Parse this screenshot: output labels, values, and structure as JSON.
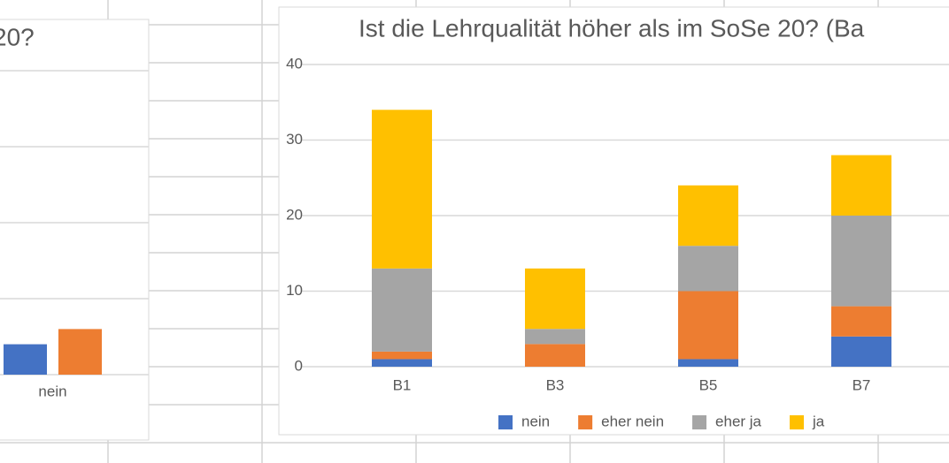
{
  "chart_data": [
    {
      "type": "bar",
      "title": "20?",
      "categories": [
        "nein"
      ],
      "series": [
        {
          "color": "#4472c4",
          "values": [
            4
          ]
        },
        {
          "color": "#ed7d31",
          "values": [
            6
          ]
        }
      ],
      "ylim": [
        0,
        40
      ],
      "yticks": [
        0,
        10,
        20,
        30,
        40
      ],
      "grid": true
    },
    {
      "type": "stacked_bar",
      "title": "Ist die Lehrqualität höher als im SoSe 20? (Ba",
      "categories": [
        "B1",
        "B3",
        "B5",
        "B7"
      ],
      "series": [
        {
          "name": "nein",
          "color": "#4472c4",
          "values": [
            1,
            0,
            1,
            4
          ]
        },
        {
          "name": "eher nein",
          "color": "#ed7d31",
          "values": [
            1,
            3,
            9,
            4
          ]
        },
        {
          "name": "eher ja",
          "color": "#a5a5a5",
          "values": [
            11,
            2,
            6,
            12
          ]
        },
        {
          "name": "ja",
          "color": "#ffc000",
          "values": [
            21,
            8,
            8,
            8
          ]
        }
      ],
      "ylim": [
        0,
        40
      ],
      "yticks": [
        0,
        10,
        20,
        30,
        40
      ],
      "grid": true,
      "legend": "bottom"
    }
  ]
}
